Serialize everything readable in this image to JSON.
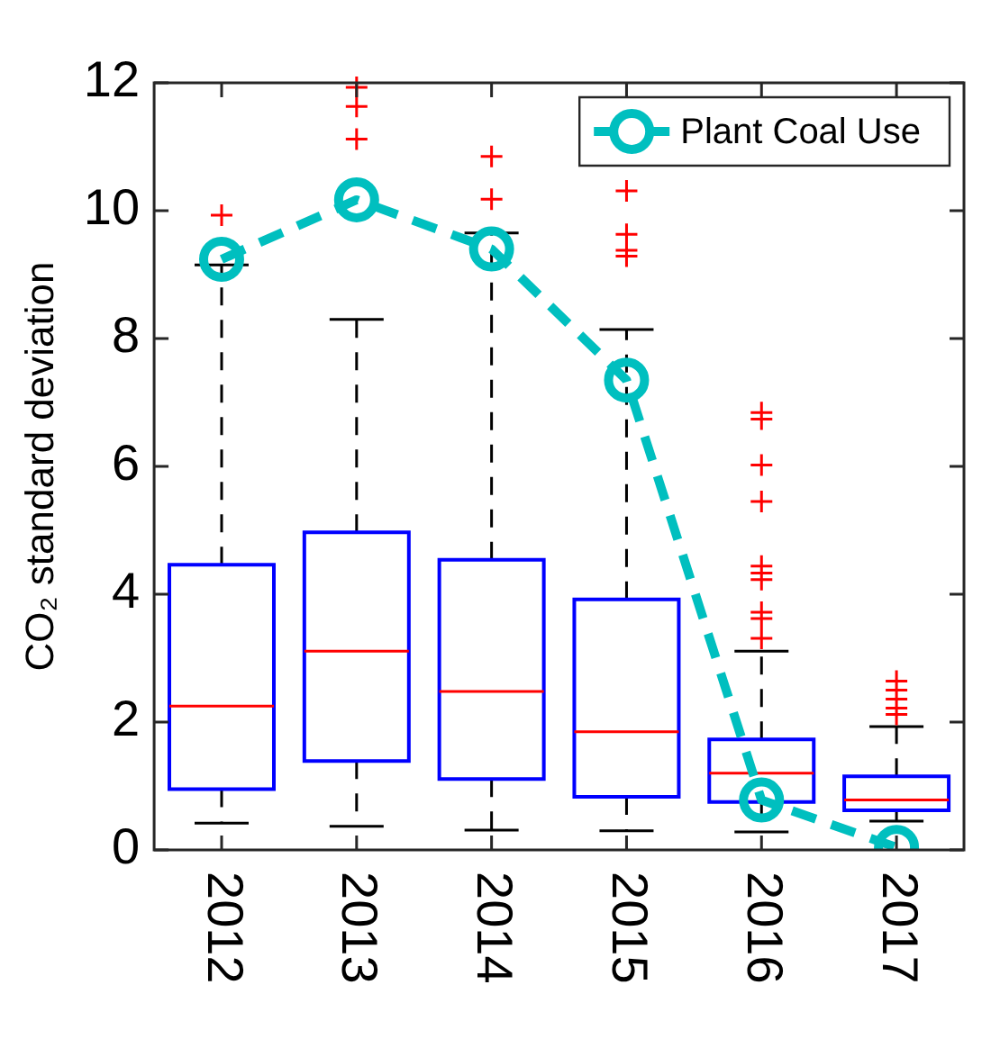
{
  "chart_data": {
    "type": "box",
    "categories": [
      "2012",
      "2013",
      "2014",
      "2015",
      "2016",
      "2017"
    ],
    "ylabel": "CO₂ standard deviation",
    "ylim": [
      0,
      12
    ],
    "yticks": [
      0,
      2,
      4,
      6,
      8,
      10,
      12
    ],
    "grid": false,
    "legend": "top right",
    "series": [
      {
        "color": "#0000ff",
        "boxes": [
          {
            "low": 0.42,
            "q1": 0.95,
            "median": 2.25,
            "q3": 4.46,
            "high": 9.15,
            "outliers": [
              9.93
            ]
          },
          {
            "low": 0.37,
            "q1": 1.39,
            "median": 3.11,
            "q3": 4.97,
            "high": 8.3,
            "outliers": [
              11.93,
              11.63,
              11.12
            ]
          },
          {
            "low": 0.31,
            "q1": 1.11,
            "median": 2.48,
            "q3": 4.54,
            "high": 9.65,
            "outliers": [
              10.85,
              10.18
            ]
          },
          {
            "low": 0.3,
            "q1": 0.83,
            "median": 1.85,
            "q3": 3.92,
            "high": 8.14,
            "outliers": [
              10.31,
              9.63,
              9.38,
              9.29
            ]
          },
          {
            "low": 0.28,
            "q1": 0.75,
            "median": 1.2,
            "q3": 1.73,
            "high": 3.11,
            "outliers": [
              6.84,
              6.74,
              6.02,
              5.45,
              4.44,
              4.33,
              4.23,
              3.72,
              3.62,
              3.31
            ]
          },
          {
            "low": 0.45,
            "q1": 0.62,
            "median": 0.78,
            "q3": 1.15,
            "high": 1.93,
            "outliers": [
              2.64,
              2.5,
              2.36,
              2.22,
              2.12
            ]
          }
        ]
      },
      {
        "type": "line",
        "name": "Plant Coal Use",
        "color": "#00bfbf",
        "marker": "circle",
        "line_style": "dashed",
        "values": [
          9.24,
          10.17,
          9.4,
          7.35,
          0.78,
          0.04
        ]
      }
    ]
  }
}
